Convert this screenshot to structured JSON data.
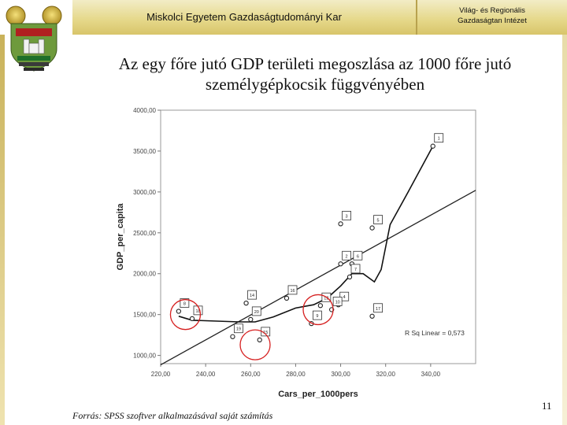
{
  "header": {
    "faculty": "Miskolci Egyetem Gazdaságtudományi Kar",
    "institute_line1": "Világ- és Regionális",
    "institute_line2": "Gazdaságtan Intézet",
    "band_color": "#e6d98c"
  },
  "slide": {
    "title_line1": "Az egy főre jutó GDP területi megoszlása az 1000 főre jutó",
    "title_line2": "személygépkocsik függvényében",
    "source": "Forrás: SPSS szoftver alkalmazásával saját számítás",
    "page_number": "11"
  },
  "logo": {
    "icon": "university-crest-icon"
  },
  "chart_data": {
    "type": "scatter",
    "title": "",
    "xlabel": "Cars_per_1000pers",
    "ylabel": "GDP_per_capita",
    "xlim": [
      220,
      360
    ],
    "ylim": [
      900,
      4000
    ],
    "x_ticks": [
      220,
      240,
      260,
      280,
      300,
      320,
      340
    ],
    "x_tick_labels": [
      "220,00",
      "240,00",
      "260,00",
      "280,00",
      "300,00",
      "320,00",
      "340,00"
    ],
    "y_ticks": [
      1000,
      1500,
      2000,
      2500,
      3000,
      3500,
      4000
    ],
    "y_tick_labels": [
      "1000,00",
      "1500,00",
      "2000,00",
      "2500,00",
      "3000,00",
      "3500,00",
      "4000,00"
    ],
    "grid": false,
    "annotation": "R Sq Linear = 0,573",
    "points": [
      {
        "label": "1",
        "x": 341,
        "y": 3560
      },
      {
        "label": "3",
        "x": 300,
        "y": 2610
      },
      {
        "label": "5",
        "x": 314,
        "y": 2560
      },
      {
        "label": "2",
        "x": 300,
        "y": 2120
      },
      {
        "label": "6",
        "x": 305,
        "y": 2120
      },
      {
        "label": "7",
        "x": 304,
        "y": 1960
      },
      {
        "label": "16",
        "x": 276,
        "y": 1700
      },
      {
        "label": "14",
        "x": 258,
        "y": 1640
      },
      {
        "label": "4",
        "x": 299,
        "y": 1620
      },
      {
        "label": "12",
        "x": 291,
        "y": 1610
      },
      {
        "label": "10",
        "x": 296,
        "y": 1560
      },
      {
        "label": "8",
        "x": 228,
        "y": 1540
      },
      {
        "label": "17",
        "x": 314,
        "y": 1480
      },
      {
        "label": "18",
        "x": 234,
        "y": 1450
      },
      {
        "label": "20",
        "x": 260,
        "y": 1440
      },
      {
        "label": "9",
        "x": 287,
        "y": 1390
      },
      {
        "label": "19",
        "x": 252,
        "y": 1230
      },
      {
        "label": "15",
        "x": 264,
        "y": 1190
      }
    ],
    "linear_fit": {
      "x": [
        220,
        360
      ],
      "y": [
        885,
        3020
      ]
    },
    "loess_fit": {
      "x": [
        228,
        234,
        245,
        255,
        262,
        270,
        280,
        288,
        294,
        300,
        305,
        310,
        315,
        318,
        322,
        330,
        341
      ],
      "y": [
        1480,
        1430,
        1420,
        1410,
        1410,
        1470,
        1580,
        1620,
        1700,
        1850,
        2000,
        2000,
        1900,
        2050,
        2600,
        3000,
        3560
      ]
    },
    "highlight_circles": [
      {
        "x": 231,
        "y": 1500
      },
      {
        "x": 290,
        "y": 1560
      },
      {
        "x": 262,
        "y": 1130
      }
    ],
    "point_color": "#222222",
    "line_color": "#111111",
    "highlight_color": "#d62020"
  }
}
